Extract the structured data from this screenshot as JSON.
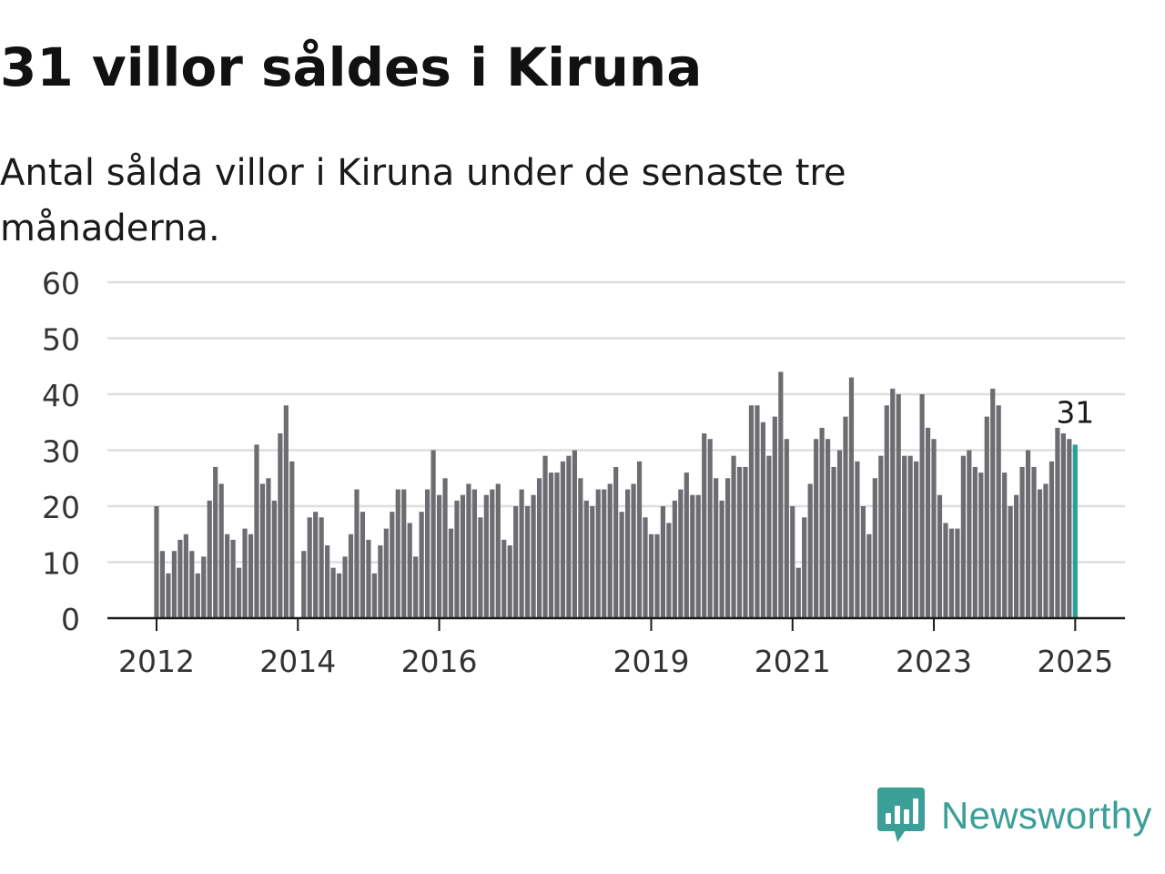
{
  "title": "31 villor såldes i Kiruna",
  "subtitle": "Antal sålda villor i Kiruna under de senaste tre månaderna.",
  "brand": {
    "name": "Newsworthy",
    "logo_icon": "newsworthy-chart-bubble-icon",
    "color": "#3b9f97"
  },
  "chart_data": {
    "type": "bar",
    "xlabel": "",
    "ylabel": "",
    "ylim": [
      0,
      60
    ],
    "yticks": [
      0,
      10,
      20,
      30,
      40,
      50,
      60
    ],
    "xticks": [
      {
        "label": "2012",
        "index": 0
      },
      {
        "label": "2014",
        "index": 24
      },
      {
        "label": "2016",
        "index": 48
      },
      {
        "label": "2019",
        "index": 84
      },
      {
        "label": "2021",
        "index": 108
      },
      {
        "label": "2023",
        "index": 132
      },
      {
        "label": "2025",
        "index": 156
      }
    ],
    "grid": true,
    "bar_color": "#6d6c71",
    "highlight_color": "#2aa198",
    "highlight_label": "31",
    "values": [
      20,
      12,
      8,
      12,
      14,
      15,
      12,
      8,
      11,
      21,
      27,
      24,
      15,
      14,
      9,
      16,
      15,
      31,
      24,
      25,
      21,
      33,
      38,
      28,
      0,
      12,
      18,
      19,
      18,
      13,
      9,
      8,
      11,
      15,
      23,
      19,
      14,
      8,
      13,
      16,
      19,
      23,
      23,
      17,
      11,
      19,
      23,
      30,
      22,
      25,
      16,
      21,
      22,
      24,
      23,
      18,
      22,
      23,
      24,
      14,
      13,
      20,
      23,
      20,
      22,
      25,
      29,
      26,
      26,
      28,
      29,
      30,
      25,
      21,
      20,
      23,
      23,
      24,
      27,
      19,
      23,
      24,
      28,
      18,
      15,
      15,
      20,
      17,
      21,
      23,
      26,
      22,
      22,
      33,
      32,
      25,
      21,
      25,
      29,
      27,
      27,
      38,
      38,
      35,
      29,
      36,
      44,
      32,
      20,
      9,
      18,
      24,
      32,
      34,
      32,
      27,
      30,
      36,
      43,
      28,
      20,
      15,
      25,
      29,
      38,
      41,
      40,
      29,
      29,
      28,
      40,
      34,
      32,
      22,
      17,
      16,
      16,
      29,
      30,
      27,
      26,
      36,
      41,
      38,
      26,
      20,
      22,
      27,
      30,
      27,
      23,
      24,
      28,
      34,
      33,
      32,
      31
    ]
  }
}
